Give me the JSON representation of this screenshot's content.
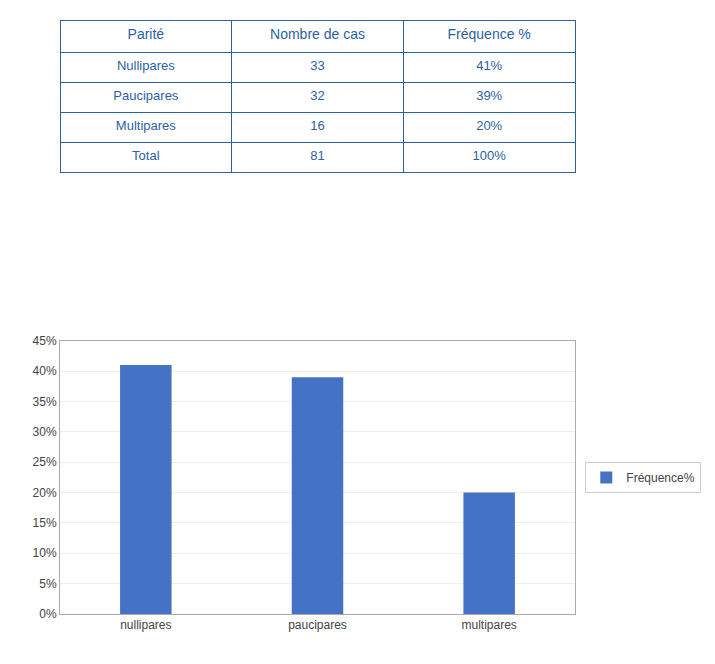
{
  "chart_data": [
    {
      "type": "table",
      "columns": [
        "Parité",
        "Nombre de cas",
        "Fréquence %"
      ],
      "rows": [
        [
          "Nullipares",
          "33",
          "41%"
        ],
        [
          "Paucipares",
          "32",
          "39%"
        ],
        [
          "Multipares",
          "16",
          "20%"
        ],
        [
          "Total",
          "81",
          "100%"
        ]
      ],
      "color": "#2e5fa3"
    },
    {
      "type": "bar",
      "categories": [
        "nullipares",
        "paucipares",
        "multipares"
      ],
      "series": [
        {
          "name": "Fréquence%",
          "color": "#4472c4",
          "values": [
            41,
            39,
            20
          ]
        }
      ],
      "ylim": [
        0,
        45
      ],
      "yticks": [
        {
          "value": 0,
          "label": "0%"
        },
        {
          "value": 5,
          "label": "5%"
        },
        {
          "value": 10,
          "label": "10%"
        },
        {
          "value": 15,
          "label": "15%"
        },
        {
          "value": 20,
          "label": "20%"
        },
        {
          "value": 25,
          "label": "25%"
        },
        {
          "value": 30,
          "label": "30%"
        },
        {
          "value": 35,
          "label": "35%"
        },
        {
          "value": 40,
          "label": "40%"
        },
        {
          "value": 45,
          "label": "45%"
        }
      ],
      "grid": true,
      "legend": "right"
    }
  ]
}
